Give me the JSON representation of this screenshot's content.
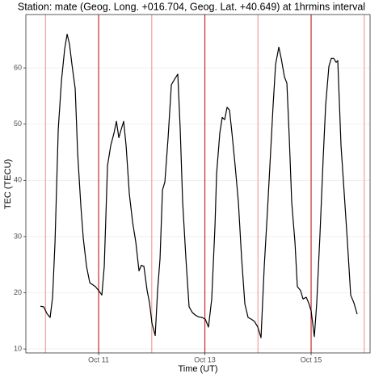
{
  "chart_data": {
    "type": "line",
    "title": "Station: mate (Geog. Long. +016.704, Geog. Lat. +40.649) at 1hrmins interval",
    "x_label": "Time (UT)",
    "y_label": "TEC (TECU)",
    "xlim": [
      9.63,
      16.11
    ],
    "ylim": [
      9.3,
      69.5
    ],
    "xticks": [
      {
        "value": 11,
        "label": "Oct 11"
      },
      {
        "value": 13,
        "label": "Oct 13"
      },
      {
        "value": 15,
        "label": "Oct 15"
      }
    ],
    "yticks": [
      10,
      20,
      30,
      40,
      50,
      60
    ],
    "grid": true,
    "vlines": [
      {
        "value": 10,
        "color": "#f2a0a0"
      },
      {
        "value": 11,
        "color": "#c62828"
      },
      {
        "value": 12,
        "color": "#f2a0a0"
      },
      {
        "value": 13,
        "color": "#c62828"
      },
      {
        "value": 14,
        "color": "#f2a0a0"
      },
      {
        "value": 15,
        "color": "#c62828"
      },
      {
        "value": 16,
        "color": "#f2a0a0"
      }
    ],
    "series": [
      {
        "name": "TEC",
        "color": "#000000",
        "x": [
          9.905,
          9.966,
          10.027,
          10.087,
          10.133,
          10.179,
          10.24,
          10.3,
          10.361,
          10.407,
          10.452,
          10.498,
          10.559,
          10.605,
          10.665,
          10.711,
          10.772,
          10.833,
          10.878,
          10.939,
          11.0,
          11.061,
          11.106,
          11.167,
          11.228,
          11.289,
          11.335,
          11.38,
          11.426,
          11.471,
          11.517,
          11.578,
          11.639,
          11.7,
          11.76,
          11.806,
          11.852,
          11.913,
          11.958,
          12.004,
          12.065,
          12.11,
          12.156,
          12.202,
          12.247,
          12.308,
          12.369,
          12.43,
          12.49,
          12.536,
          12.582,
          12.643,
          12.703,
          12.764,
          12.825,
          12.886,
          12.947,
          13.008,
          13.068,
          13.129,
          13.19,
          13.221,
          13.281,
          13.327,
          13.373,
          13.418,
          13.464,
          13.51,
          13.57,
          13.631,
          13.692,
          13.753,
          13.814,
          13.875,
          13.935,
          13.996,
          14.057,
          14.118,
          14.179,
          14.224,
          14.285,
          14.331,
          14.392,
          14.437,
          14.498,
          14.544,
          14.589,
          14.635,
          14.696,
          14.741,
          14.802,
          14.848,
          14.909,
          14.954,
          15.0,
          15.061,
          15.106,
          15.167,
          15.228,
          15.274,
          15.335,
          15.38,
          15.426,
          15.471,
          15.502,
          15.563,
          15.624,
          15.684,
          15.745,
          15.806,
          15.867
        ],
        "values": [
          17.6,
          17.5,
          16.3,
          15.6,
          19.2,
          29.0,
          49.1,
          57.7,
          63.4,
          66.0,
          64.2,
          60.6,
          56.3,
          44.8,
          35.5,
          29.7,
          24.7,
          21.8,
          21.5,
          21.1,
          20.4,
          19.6,
          24.7,
          42.6,
          46.2,
          48.4,
          50.5,
          47.6,
          49.1,
          50.5,
          46.2,
          37.6,
          32.6,
          29.0,
          23.9,
          24.9,
          24.7,
          20.4,
          18.2,
          14.6,
          12.4,
          20.4,
          26.1,
          38.3,
          39.7,
          47.6,
          57.0,
          58.0,
          58.9,
          49.1,
          36.1,
          26.1,
          17.5,
          16.5,
          16.0,
          15.7,
          15.6,
          15.3,
          13.9,
          18.9,
          31.8,
          41.2,
          48.4,
          51.2,
          50.8,
          53.0,
          52.5,
          48.4,
          42.6,
          36.1,
          26.1,
          18.0,
          15.6,
          15.3,
          14.9,
          13.9,
          12.0,
          24.7,
          34.7,
          42.6,
          53.4,
          60.6,
          63.7,
          61.7,
          58.4,
          57.3,
          47.6,
          36.1,
          29.0,
          21.1,
          20.4,
          18.9,
          19.2,
          18.2,
          16.8,
          12.2,
          18.2,
          30.4,
          44.1,
          53.4,
          60.3,
          61.7,
          61.7,
          61.0,
          61.3,
          46.2,
          37.6,
          29.0,
          19.6,
          18.2,
          16.2
        ]
      }
    ]
  }
}
